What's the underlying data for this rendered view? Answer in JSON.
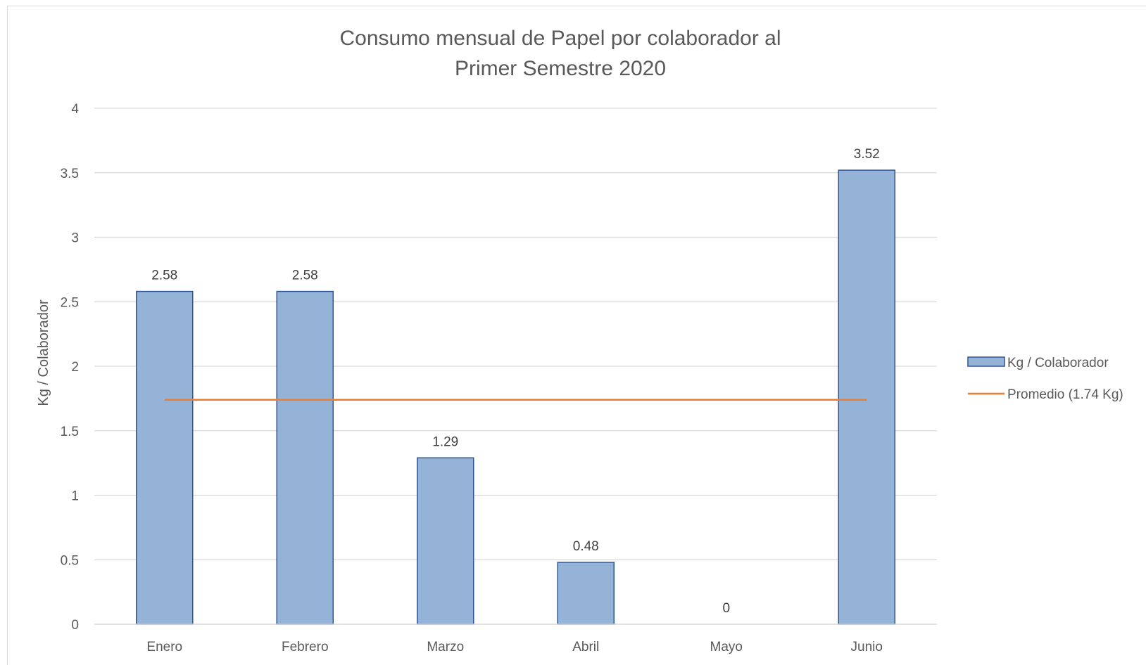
{
  "chart_data": {
    "type": "bar",
    "title": "Consumo mensual de Papel por colaborador al Primer Semestre 2020",
    "title_lines": [
      "Consumo mensual de Papel por colaborador al",
      "Primer Semestre 2020"
    ],
    "xlabel": "",
    "ylabel": "Kg / Colaborador",
    "categories": [
      "Enero",
      "Febrero",
      "Marzo",
      "Abril",
      "Mayo",
      "Junio"
    ],
    "series": [
      {
        "name": "Kg / Colaborador",
        "type": "bar",
        "values": [
          2.58,
          2.58,
          1.29,
          0.48,
          0,
          3.52
        ],
        "data_labels": [
          "2.58",
          "2.58",
          "1.29",
          "0.48",
          "0",
          "3.52"
        ],
        "color": "#95b3d7",
        "border_color": "#2f5597"
      },
      {
        "name": "Promedio (1.74 Kg)",
        "type": "line",
        "values": [
          1.74,
          1.74,
          1.74,
          1.74,
          1.74,
          1.74
        ],
        "color": "#ed7d31"
      }
    ],
    "ylim": [
      0,
      4
    ],
    "yticks": [
      "0",
      "0.5",
      "1",
      "1.5",
      "2",
      "2.5",
      "3",
      "3.5",
      "4"
    ],
    "grid": true,
    "legend_position": "right"
  }
}
